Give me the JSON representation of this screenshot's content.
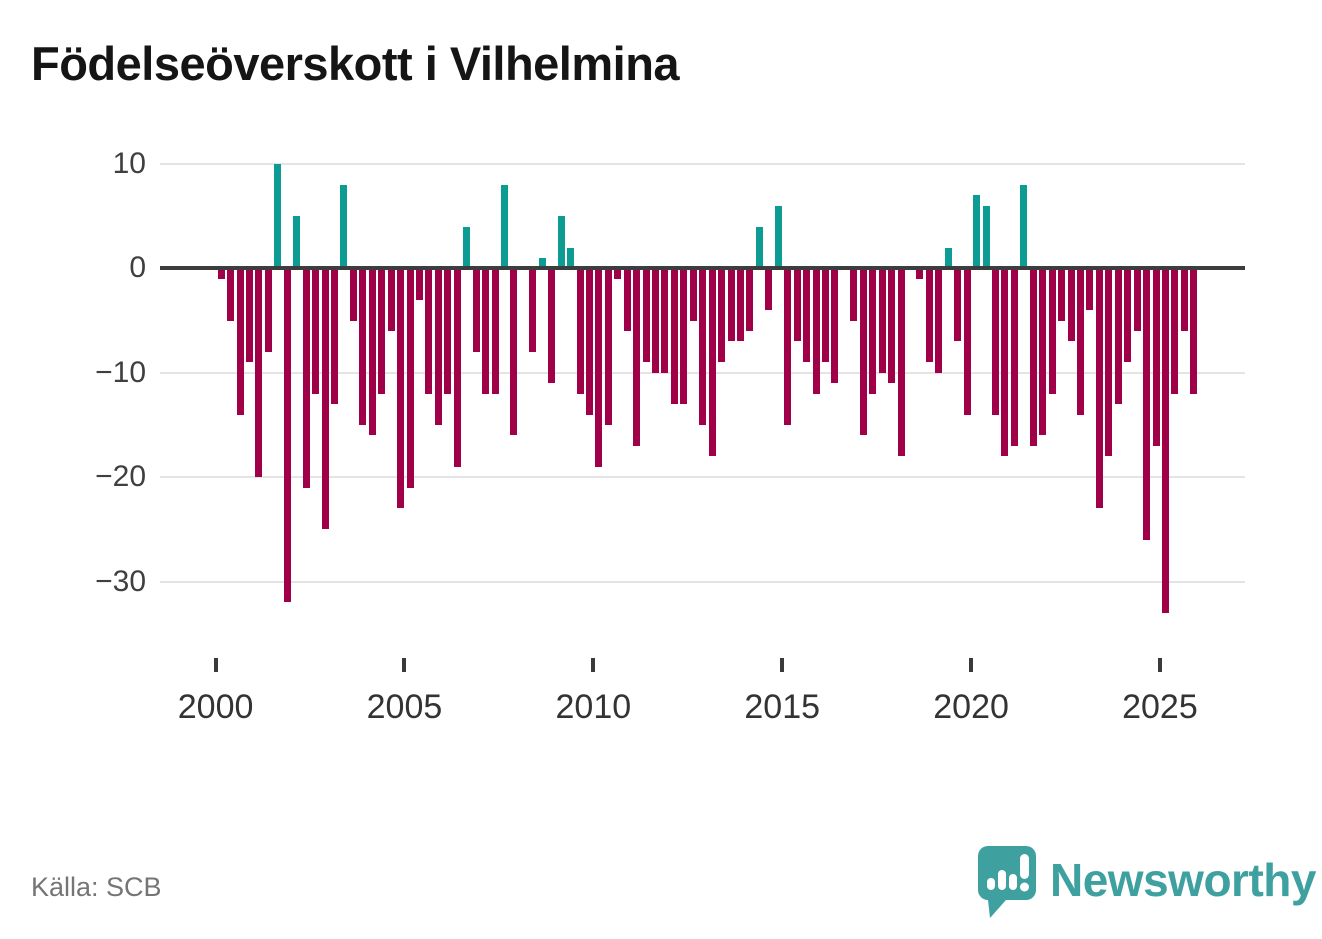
{
  "title": "Födelseöverskott i Vilhelmina",
  "source": "Källa: SCB",
  "logo": {
    "brand": "Newsworthy",
    "bubble_icon": "speech-bubble-barchart-exclamation-icon"
  },
  "colors": {
    "positive_bar": "#0d9c94",
    "negative_bar": "#a00048",
    "zero_axis_line": "#3d3d3d",
    "gridline": "#e4e4e4",
    "title_text": "#151515",
    "axis_text": "#3a3a3a",
    "source_text": "#757575",
    "brand_teal": "#3fa0a0"
  },
  "chart_data": {
    "type": "bar",
    "title": "Födelseöverskott i Vilhelmina",
    "xlabel": "",
    "ylabel": "",
    "grid": true,
    "legend": "none",
    "ylim": [
      -35,
      12
    ],
    "yticks": {
      "values": [
        10,
        0,
        -10,
        -20,
        -30
      ],
      "labels": [
        "10",
        "0",
        "−10",
        "−20",
        "−30"
      ]
    },
    "xticks": {
      "years": [
        2000,
        2005,
        2010,
        2015,
        2020,
        2025
      ],
      "labels": [
        "2000",
        "2005",
        "2010",
        "2015",
        "2020",
        "2025"
      ]
    },
    "x": [
      "2000 Q1",
      "2000 Q2",
      "2000 Q3",
      "2000 Q4",
      "2001 Q1",
      "2001 Q2",
      "2001 Q3",
      "2001 Q4",
      "2002 Q1",
      "2002 Q2",
      "2002 Q3",
      "2002 Q4",
      "2003 Q1",
      "2003 Q2",
      "2003 Q3",
      "2003 Q4",
      "2004 Q1",
      "2004 Q2",
      "2004 Q3",
      "2004 Q4",
      "2005 Q1",
      "2005 Q2",
      "2005 Q3",
      "2005 Q4",
      "2006 Q1",
      "2006 Q2",
      "2006 Q3",
      "2006 Q4",
      "2007 Q1",
      "2007 Q2",
      "2007 Q3",
      "2007 Q4",
      "2008 Q1",
      "2008 Q2",
      "2008 Q3",
      "2008 Q4",
      "2009 Q1",
      "2009 Q2",
      "2009 Q3",
      "2009 Q4",
      "2010 Q1",
      "2010 Q2",
      "2010 Q3",
      "2010 Q4",
      "2011 Q1",
      "2011 Q2",
      "2011 Q3",
      "2011 Q4",
      "2012 Q1",
      "2012 Q2",
      "2012 Q3",
      "2012 Q4",
      "2013 Q1",
      "2013 Q2",
      "2013 Q3",
      "2013 Q4",
      "2014 Q1",
      "2014 Q2",
      "2014 Q3",
      "2014 Q4",
      "2015 Q1",
      "2015 Q2",
      "2015 Q3",
      "2015 Q4",
      "2016 Q1",
      "2016 Q2",
      "2016 Q3",
      "2016 Q4",
      "2017 Q1",
      "2017 Q2",
      "2017 Q3",
      "2017 Q4",
      "2018 Q1",
      "2018 Q2",
      "2018 Q3",
      "2018 Q4",
      "2019 Q1",
      "2019 Q2",
      "2019 Q3",
      "2019 Q4",
      "2020 Q1",
      "2020 Q2",
      "2020 Q3",
      "2020 Q4",
      "2021 Q1",
      "2021 Q2",
      "2021 Q3",
      "2021 Q4",
      "2022 Q1",
      "2022 Q2",
      "2022 Q3",
      "2022 Q4",
      "2023 Q1",
      "2023 Q2",
      "2023 Q3",
      "2023 Q4",
      "2024 Q1",
      "2024 Q2",
      "2024 Q3",
      "2024 Q4",
      "2025 Q1",
      "2025 Q2",
      "2025 Q3",
      "2025 Q4"
    ],
    "values": [
      -1,
      -5,
      -14,
      -9,
      -20,
      -8,
      10,
      -32,
      5,
      -21,
      -12,
      -25,
      -13,
      8,
      -5,
      -15,
      -16,
      -12,
      -6,
      -23,
      -21,
      -3,
      -12,
      -15,
      -12,
      -19,
      4,
      -8,
      -12,
      -12,
      8,
      -16,
      0,
      -8,
      1,
      -11,
      5,
      2,
      -12,
      -14,
      -19,
      -15,
      -1,
      -6,
      -17,
      -9,
      -10,
      -10,
      -13,
      -13,
      -5,
      -15,
      -18,
      -9,
      -7,
      -7,
      -6,
      4,
      -4,
      6,
      -15,
      -7,
      -9,
      -12,
      -9,
      -11,
      0,
      -5,
      -16,
      -12,
      -10,
      -11,
      -18,
      0,
      -1,
      -9,
      -10,
      2,
      -7,
      -14,
      7,
      6,
      -14,
      -18,
      -17,
      8,
      -17,
      -16,
      -12,
      -5,
      -7,
      -14,
      -4,
      -23,
      -18,
      -13,
      -9,
      -6,
      -26,
      -17,
      -33,
      -12,
      -6,
      -12
    ]
  }
}
